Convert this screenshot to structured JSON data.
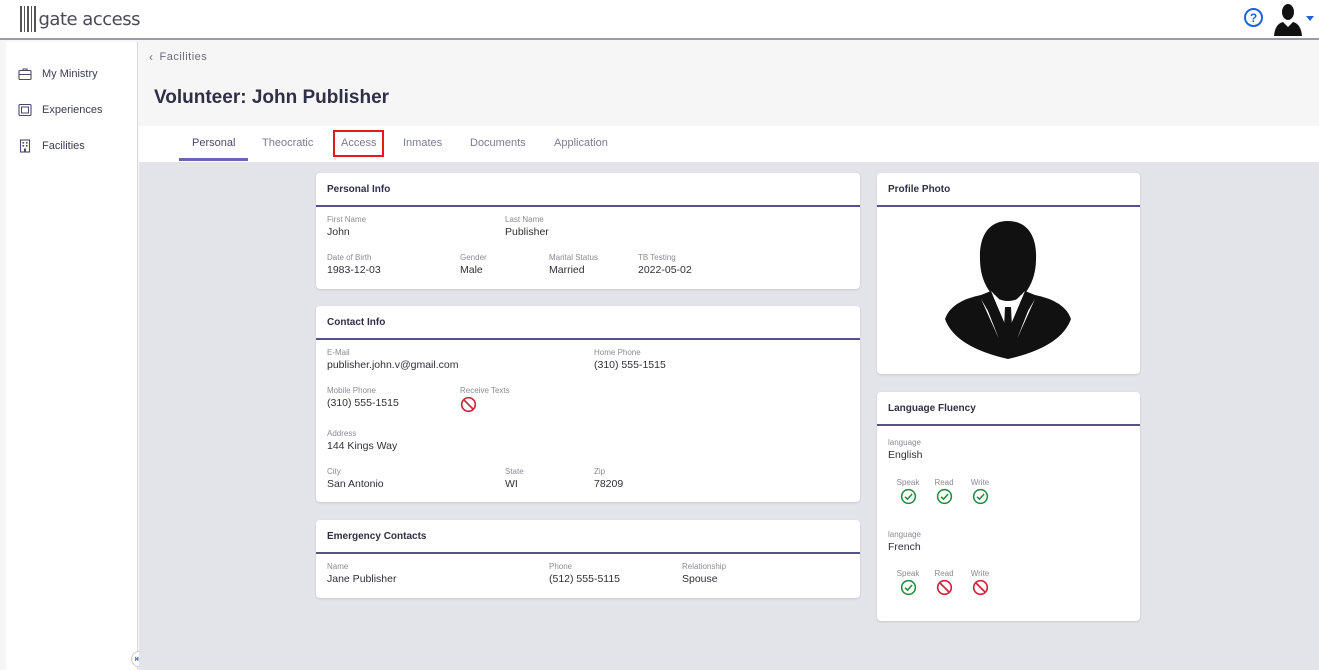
{
  "app": {
    "logo_text": "gate access"
  },
  "sidebar": {
    "items": [
      {
        "label": "My Ministry",
        "icon": "briefcase-icon"
      },
      {
        "label": "Experiences",
        "icon": "gallery-icon"
      },
      {
        "label": "Facilities",
        "icon": "building-icon"
      }
    ]
  },
  "breadcrumb": {
    "label": "Facilities"
  },
  "page": {
    "title": "Volunteer: John Publisher"
  },
  "tabs": [
    "Personal",
    "Theocratic",
    "Access",
    "Inmates",
    "Documents",
    "Application"
  ],
  "active_tab": "Personal",
  "highlighted_tab": "Access",
  "personal_info": {
    "title": "Personal Info",
    "first_name_label": "First Name",
    "first_name": "John",
    "last_name_label": "Last Name",
    "last_name": "Publisher",
    "dob_label": "Date of Birth",
    "dob": "1983-12-03",
    "gender_label": "Gender",
    "gender": "Male",
    "marital_label": "Marital Status",
    "marital": "Married",
    "tb_label": "TB Testing",
    "tb": "2022-05-02"
  },
  "contact_info": {
    "title": "Contact Info",
    "email_label": "E-Mail",
    "email": "publisher.john.v@gmail.com",
    "home_phone_label": "Home Phone",
    "home_phone": "(310) 555-1515",
    "mobile_label": "Mobile Phone",
    "mobile": "(310) 555-1515",
    "receive_texts_label": "Receive Texts",
    "receive_texts": false,
    "address_label": "Address",
    "address": "144 Kings Way",
    "city_label": "City",
    "city": "San Antonio",
    "state_label": "State",
    "state": "WI",
    "zip_label": "Zip",
    "zip": "78209"
  },
  "emergency": {
    "title": "Emergency Contacts",
    "name_label": "Name",
    "name": "Jane Publisher",
    "phone_label": "Phone",
    "phone": "(512) 555-5115",
    "relationship_label": "Relationship",
    "relationship": "Spouse"
  },
  "profile_photo": {
    "title": "Profile Photo"
  },
  "language_fluency": {
    "title": "Language Fluency",
    "language_label": "language",
    "speak_label": "Speak",
    "read_label": "Read",
    "write_label": "Write",
    "languages": [
      {
        "name": "English",
        "speak": true,
        "read": true,
        "write": true
      },
      {
        "name": "French",
        "speak": true,
        "read": false,
        "write": false
      }
    ]
  },
  "colors": {
    "accent": "#55528a",
    "check": "#1f8a3a",
    "no": "#d0253d",
    "help": "#1e63d8",
    "highlight": "#e01b1b"
  }
}
